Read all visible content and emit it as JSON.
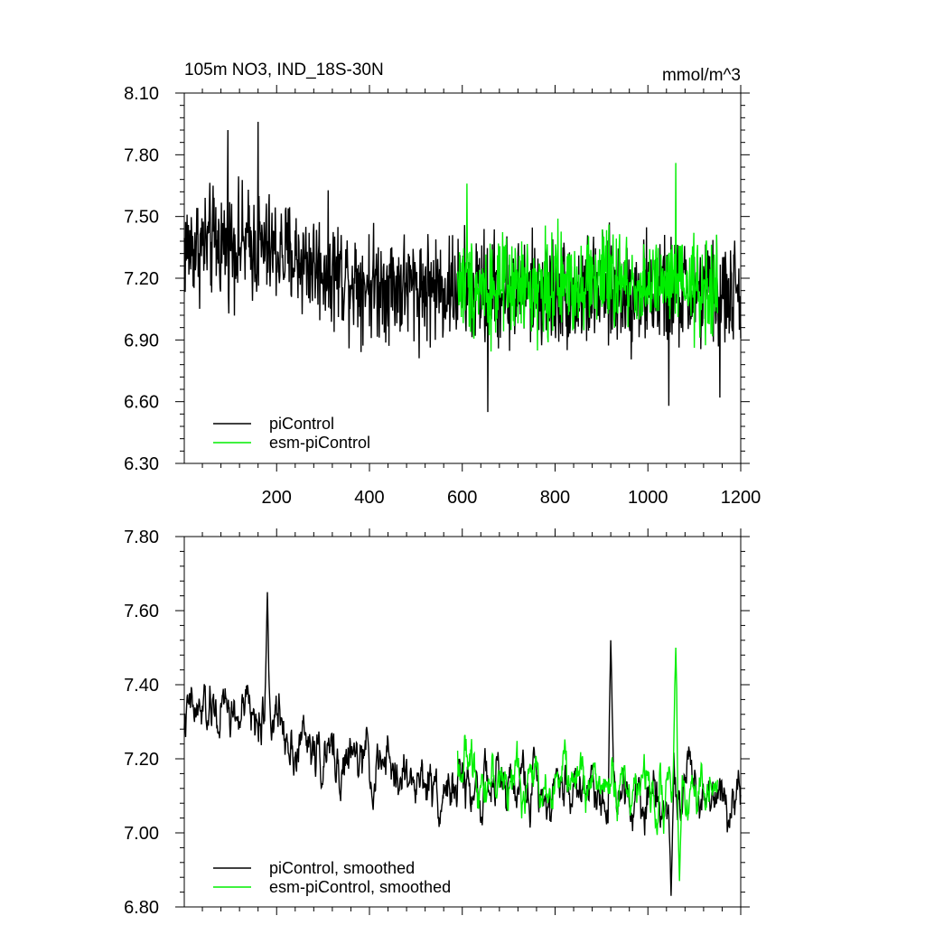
{
  "chart_data": [
    {
      "type": "line",
      "title": "105m NO3, IND_18S-30N",
      "units": "mmol/m^3",
      "xlim": [
        1,
        1200
      ],
      "ylim": [
        6.3,
        8.1
      ],
      "xticks": [
        200,
        400,
        600,
        800,
        1000,
        1200
      ],
      "xtick_labels": [
        "200",
        "400",
        "600",
        "800",
        "1000",
        "1200"
      ],
      "yticks": [
        6.3,
        6.6,
        6.9,
        7.2,
        7.5,
        7.8,
        8.1
      ],
      "ytick_labels": [
        "6.30",
        "6.60",
        "6.90",
        "7.20",
        "7.50",
        "7.80",
        "8.10"
      ],
      "legend": [
        "piControl",
        "esm-piControl"
      ],
      "series": [
        {
          "name": "piControl",
          "color": "#000000",
          "x_range": [
            1,
            1200
          ],
          "description": "monthly annual-mean values, noisy, drifting from ~7.35 to ~7.15",
          "anchors": [
            [
              1,
              7.35
            ],
            [
              100,
              7.38
            ],
            [
              200,
              7.33
            ],
            [
              300,
              7.25
            ],
            [
              400,
              7.18
            ],
            [
              500,
              7.16
            ],
            [
              600,
              7.15
            ],
            [
              800,
              7.13
            ],
            [
              1000,
              7.13
            ],
            [
              1200,
              7.12
            ]
          ],
          "amplitude": 0.22,
          "extremes": [
            [
              95,
              7.92
            ],
            [
              160,
              7.96
            ],
            [
              655,
              6.55
            ],
            [
              1045,
              6.58
            ],
            [
              1155,
              6.62
            ]
          ]
        },
        {
          "name": "esm-piControl",
          "color": "#00ee00",
          "x_range": [
            590,
            1150
          ],
          "description": "noisy values around ~7.17",
          "anchors": [
            [
              590,
              7.18
            ],
            [
              700,
              7.14
            ],
            [
              800,
              7.17
            ],
            [
              900,
              7.2
            ],
            [
              1000,
              7.16
            ],
            [
              1100,
              7.15
            ],
            [
              1150,
              7.14
            ]
          ],
          "amplitude": 0.2,
          "extremes": [
            [
              1060,
              7.76
            ],
            [
              610,
              7.66
            ]
          ]
        }
      ]
    },
    {
      "type": "line",
      "title": "",
      "units": "",
      "xlim": [
        1,
        1200
      ],
      "ylim": [
        6.8,
        7.8
      ],
      "xticks": [
        200,
        400,
        600,
        800,
        1000,
        1200
      ],
      "yticks": [
        6.8,
        7.0,
        7.2,
        7.4,
        7.6,
        7.8
      ],
      "ytick_labels": [
        "6.80",
        "7.00",
        "7.20",
        "7.40",
        "7.60",
        "7.80"
      ],
      "legend": [
        "piControl, smoothed",
        "esm-piControl, smoothed"
      ],
      "series": [
        {
          "name": "piControl, smoothed",
          "color": "#000000",
          "x_range": [
            1,
            1200
          ],
          "anchors": [
            [
              1,
              7.31
            ],
            [
              100,
              7.32
            ],
            [
              200,
              7.3
            ],
            [
              300,
              7.2
            ],
            [
              400,
              7.18
            ],
            [
              500,
              7.14
            ],
            [
              600,
              7.12
            ],
            [
              800,
              7.13
            ],
            [
              1000,
              7.12
            ],
            [
              1200,
              7.12
            ]
          ],
          "amplitude": 0.12,
          "extremes": [
            [
              180,
              7.65
            ],
            [
              920,
              7.52
            ],
            [
              1050,
              6.83
            ]
          ]
        },
        {
          "name": "esm-piControl, smoothed",
          "color": "#00ee00",
          "x_range": [
            590,
            1150
          ],
          "anchors": [
            [
              590,
              7.2
            ],
            [
              700,
              7.13
            ],
            [
              800,
              7.15
            ],
            [
              900,
              7.14
            ],
            [
              1000,
              7.12
            ],
            [
              1100,
              7.13
            ],
            [
              1150,
              7.12
            ]
          ],
          "amplitude": 0.11,
          "extremes": [
            [
              1060,
              7.5
            ],
            [
              1068,
              6.87
            ]
          ]
        }
      ]
    }
  ]
}
